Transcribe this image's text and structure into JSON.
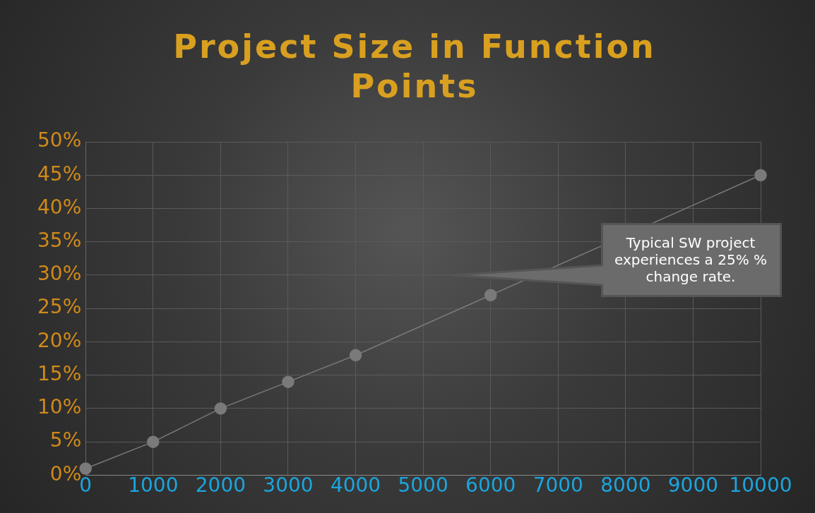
{
  "chart_data": {
    "type": "line",
    "title": "Project Size in Function Points",
    "x": [
      0,
      1000,
      2000,
      3000,
      4000,
      6000,
      10000
    ],
    "series": [
      {
        "color": "#7a7a7a",
        "values": [
          1,
          5,
          10,
          14,
          18,
          27,
          45
        ]
      }
    ],
    "xlim": [
      0,
      10000
    ],
    "xticks": [
      0,
      1000,
      2000,
      3000,
      4000,
      5000,
      6000,
      7000,
      8000,
      9000,
      10000
    ],
    "ylim": [
      0,
      50
    ],
    "yticks": [
      {
        "value": 0,
        "label": "0%"
      },
      {
        "value": 5,
        "label": "5%"
      },
      {
        "value": 10,
        "label": "10%"
      },
      {
        "value": 15,
        "label": "15%"
      },
      {
        "value": 20,
        "label": "20%"
      },
      {
        "value": 25,
        "label": "25%"
      },
      {
        "value": 30,
        "label": "30%"
      },
      {
        "value": 35,
        "label": "35%"
      },
      {
        "value": 40,
        "label": "40%"
      },
      {
        "value": 45,
        "label": "45%"
      },
      {
        "value": 50,
        "label": "50%"
      }
    ],
    "grid": true,
    "legend": false,
    "marker": "circle",
    "line_style": "solid",
    "annotations": [
      "Typical SW project experiences a 25% % change rate."
    ]
  }
}
